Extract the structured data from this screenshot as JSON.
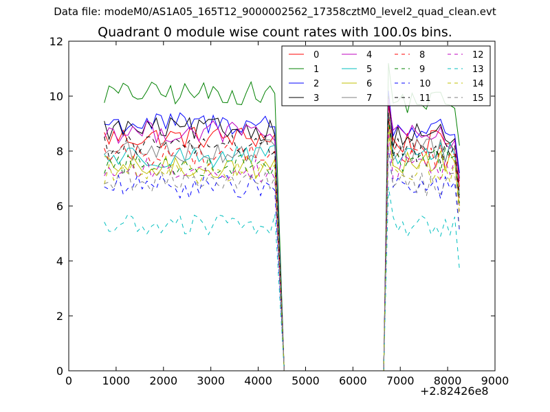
{
  "figure": {
    "suptitle": "Data file: modeM0/AS1A05_165T12_9000002562_17358cztM0_level2_quad_clean.evt",
    "x_offset_label": "+2.82426e8"
  },
  "chart_data": {
    "type": "line",
    "title": "Quadrant 0 module wise count rates with 100.0s bins.",
    "xlabel": "",
    "ylabel": "",
    "xlim": [
      0,
      9000
    ],
    "ylim": [
      0,
      12
    ],
    "x_ticks": [
      0,
      1000,
      2000,
      3000,
      4000,
      5000,
      6000,
      7000,
      8000,
      9000
    ],
    "y_ticks": [
      0,
      2,
      4,
      6,
      8,
      10,
      12
    ],
    "legend_position": "top-right",
    "legend_columns": 4,
    "grid": false,
    "series": [
      {
        "name": "0",
        "color": "#ff0000",
        "dash": "solid",
        "level": 8.5,
        "level2": 8.3
      },
      {
        "name": "1",
        "color": "#008000",
        "dash": "solid",
        "level": 10.1,
        "level2": 9.8
      },
      {
        "name": "2",
        "color": "#0000ff",
        "dash": "solid",
        "level": 9.0,
        "level2": 8.8
      },
      {
        "name": "3",
        "color": "#000000",
        "dash": "solid",
        "level": 8.8,
        "level2": 8.6
      },
      {
        "name": "4",
        "color": "#bf00bf",
        "dash": "solid",
        "level": 8.7,
        "level2": 8.5
      },
      {
        "name": "5",
        "color": "#00bfbf",
        "dash": "solid",
        "level": 7.8,
        "level2": 7.9
      },
      {
        "name": "6",
        "color": "#bfbf00",
        "dash": "solid",
        "level": 7.4,
        "level2": 7.6
      },
      {
        "name": "7",
        "color": "#808080",
        "dash": "solid",
        "level": 8.0,
        "level2": 8.0
      },
      {
        "name": "8",
        "color": "#ff0000",
        "dash": "dashed",
        "level": 7.9,
        "level2": 7.8
      },
      {
        "name": "9",
        "color": "#008000",
        "dash": "dashed",
        "level": 7.5,
        "level2": 7.7
      },
      {
        "name": "10",
        "color": "#0000ff",
        "dash": "dashed",
        "level": 6.7,
        "level2": 6.7
      },
      {
        "name": "11",
        "color": "#000000",
        "dash": "dashed",
        "level": 8.2,
        "level2": 8.0
      },
      {
        "name": "12",
        "color": "#bf00bf",
        "dash": "dashed",
        "level": 7.3,
        "level2": 7.4
      },
      {
        "name": "13",
        "color": "#00bfbf",
        "dash": "dashed",
        "level": 5.3,
        "level2": 5.3
      },
      {
        "name": "14",
        "color": "#bfbf00",
        "dash": "dashed",
        "level": 7.2,
        "level2": 7.3
      },
      {
        "name": "15",
        "color": "#808080",
        "dash": "dashed",
        "level": 6.9,
        "level2": 6.8
      }
    ],
    "segments": {
      "x_start": 750,
      "x_step": 100,
      "first_end": 4350,
      "gap_start": 4550,
      "gap_end": 6650,
      "second_start": 6750,
      "second_end": 8250
    }
  }
}
